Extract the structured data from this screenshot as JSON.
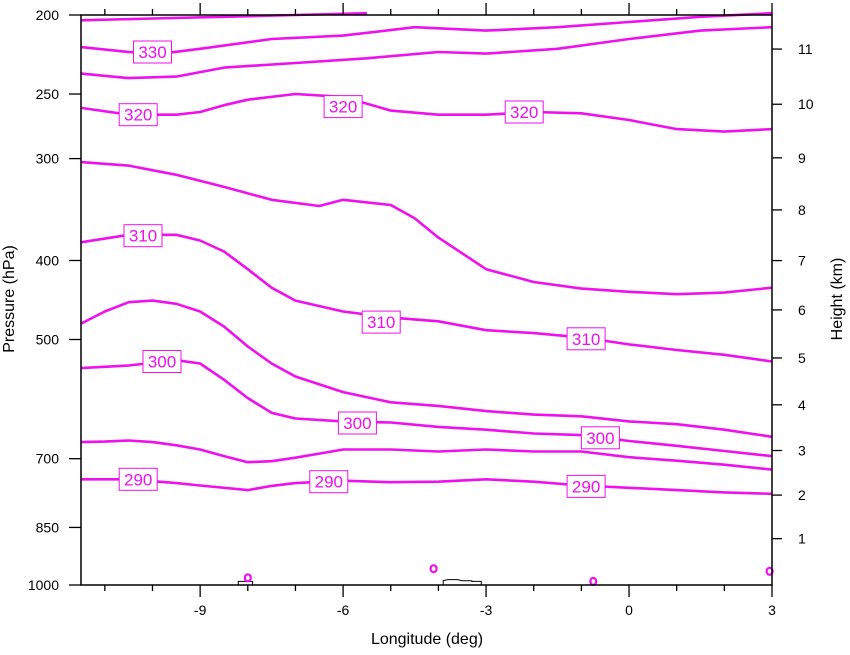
{
  "chart_data": {
    "type": "contour",
    "xlabel": "Longitude (deg)",
    "ylabel_left": "Pressure (hPa)",
    "ylabel_right": "Height (km)",
    "xlim": [
      -11.5,
      3
    ],
    "x_ticks": [
      -9,
      -6,
      -3,
      0,
      3
    ],
    "x_tick_labels": [
      "-9",
      "-6",
      "-3",
      "0",
      "3"
    ],
    "pressure_ticks": [
      200,
      250,
      300,
      400,
      500,
      700,
      850,
      1000
    ],
    "pressure_tick_labels": [
      "200",
      "250",
      "300",
      "400",
      "500",
      "700",
      "850",
      "1000"
    ],
    "ylim_pressure_hPa": [
      1000,
      200
    ],
    "height_ticks_km": [
      1,
      2,
      3,
      4,
      5,
      6,
      7,
      8,
      9,
      10,
      11
    ],
    "height_tick_labels": [
      "1",
      "2",
      "3",
      "4",
      "5",
      "6",
      "7",
      "8",
      "9",
      "10",
      "11"
    ],
    "contour_color": "#ee11ee",
    "terrain_color": "#000000",
    "contour_interval": 5,
    "contours": [
      {
        "value": 330,
        "label": "330",
        "points": [
          [
            -11.5,
            203
          ],
          [
            -10,
            202
          ],
          [
            -8.5,
            201
          ],
          [
            -7,
            200
          ],
          [
            -5.5,
            199
          ]
        ]
      },
      {
        "value": 330,
        "label": "330",
        "points": [
          [
            -11.5,
            219
          ],
          [
            -10.5,
            222
          ],
          [
            -9.8,
            223
          ],
          [
            -9,
            220
          ],
          [
            -7.5,
            214
          ],
          [
            -6,
            212
          ],
          [
            -4.5,
            207
          ],
          [
            -3,
            209
          ],
          [
            -1.5,
            207
          ],
          [
            0,
            204
          ],
          [
            1.5,
            201
          ],
          [
            3,
            199
          ]
        ]
      },
      {
        "value": 325,
        "label": "",
        "points": [
          [
            -11.5,
            236
          ],
          [
            -10.5,
            239
          ],
          [
            -9.5,
            238
          ],
          [
            -8.5,
            232
          ],
          [
            -7,
            229
          ],
          [
            -5.5,
            226
          ],
          [
            -4,
            222
          ],
          [
            -3,
            223
          ],
          [
            -1.5,
            220
          ],
          [
            0,
            214
          ],
          [
            1.5,
            209
          ],
          [
            3,
            207
          ]
        ]
      },
      {
        "value": 320,
        "label": "320",
        "points": [
          [
            -11.5,
            260
          ],
          [
            -10.5,
            265
          ],
          [
            -9.5,
            265
          ],
          [
            -9,
            263
          ],
          [
            -8.5,
            258
          ],
          [
            -8,
            254
          ],
          [
            -7,
            250
          ],
          [
            -6,
            252
          ],
          [
            -5,
            262
          ],
          [
            -4,
            265
          ],
          [
            -3,
            265
          ],
          [
            -2,
            263
          ],
          [
            -1,
            264
          ],
          [
            0,
            269
          ],
          [
            1,
            276
          ],
          [
            2,
            278
          ],
          [
            3,
            276
          ]
        ]
      },
      {
        "value": 315,
        "label": "",
        "points": [
          [
            -11.5,
            303
          ],
          [
            -10.5,
            306
          ],
          [
            -9.5,
            314
          ],
          [
            -8.5,
            325
          ],
          [
            -7.5,
            337
          ],
          [
            -6.5,
            343
          ],
          [
            -6,
            337
          ],
          [
            -5,
            342
          ],
          [
            -4.5,
            355
          ],
          [
            -4,
            375
          ],
          [
            -3,
            410
          ],
          [
            -2,
            425
          ],
          [
            -1,
            433
          ],
          [
            0,
            437
          ],
          [
            1,
            440
          ],
          [
            2,
            438
          ],
          [
            3,
            432
          ]
        ]
      },
      {
        "value": 310,
        "label": "310",
        "points": [
          [
            -11.5,
            380
          ],
          [
            -10.5,
            372
          ],
          [
            -9.5,
            372
          ],
          [
            -9,
            378
          ],
          [
            -8.5,
            390
          ],
          [
            -8,
            410
          ],
          [
            -7.5,
            432
          ],
          [
            -7,
            448
          ],
          [
            -6,
            462
          ],
          [
            -5,
            470
          ],
          [
            -4,
            475
          ],
          [
            -3,
            487
          ],
          [
            -2,
            491
          ],
          [
            -1,
            497
          ],
          [
            0,
            507
          ],
          [
            1,
            515
          ],
          [
            2,
            522
          ],
          [
            3,
            532
          ]
        ]
      },
      {
        "value": 305,
        "label": "",
        "points": [
          [
            -11.5,
            478
          ],
          [
            -11,
            462
          ],
          [
            -10.5,
            450
          ],
          [
            -10,
            448
          ],
          [
            -9.5,
            452
          ],
          [
            -9,
            462
          ],
          [
            -8.5,
            482
          ],
          [
            -8,
            510
          ],
          [
            -7.5,
            535
          ],
          [
            -7,
            555
          ],
          [
            -6,
            580
          ],
          [
            -5,
            597
          ],
          [
            -4,
            603
          ],
          [
            -3,
            612
          ],
          [
            -2,
            618
          ],
          [
            -1,
            621
          ],
          [
            0,
            630
          ],
          [
            1,
            635
          ],
          [
            2,
            645
          ],
          [
            3,
            658
          ]
        ]
      },
      {
        "value": 300,
        "label": "300",
        "points": [
          [
            -11.5,
            542
          ],
          [
            -10.5,
            538
          ],
          [
            -9.5,
            530
          ],
          [
            -9,
            535
          ],
          [
            -8.5,
            560
          ],
          [
            -8,
            590
          ],
          [
            -7.5,
            615
          ],
          [
            -7,
            625
          ],
          [
            -6,
            630
          ],
          [
            -5,
            632
          ],
          [
            -4,
            640
          ],
          [
            -3,
            645
          ],
          [
            -2,
            652
          ],
          [
            -1,
            655
          ],
          [
            0,
            666
          ],
          [
            1,
            675
          ],
          [
            2,
            685
          ],
          [
            3,
            695
          ]
        ]
      },
      {
        "value": 295,
        "label": "",
        "points": [
          [
            -11.5,
            668
          ],
          [
            -11,
            667
          ],
          [
            -10.5,
            665
          ],
          [
            -10,
            668
          ],
          [
            -9.5,
            674
          ],
          [
            -9,
            682
          ],
          [
            -8.5,
            695
          ],
          [
            -8,
            707
          ],
          [
            -7.5,
            705
          ],
          [
            -7,
            698
          ],
          [
            -6.5,
            690
          ],
          [
            -6,
            682
          ],
          [
            -5,
            682
          ],
          [
            -4,
            686
          ],
          [
            -3,
            682
          ],
          [
            -2,
            686
          ],
          [
            -1,
            686
          ],
          [
            0,
            697
          ],
          [
            1,
            704
          ],
          [
            2,
            712
          ],
          [
            3,
            722
          ]
        ]
      },
      {
        "value": 290,
        "label": "290",
        "points": [
          [
            -11.5,
            742
          ],
          [
            -10.5,
            742
          ],
          [
            -9.5,
            750
          ],
          [
            -9,
            755
          ],
          [
            -8,
            765
          ],
          [
            -7.5,
            756
          ],
          [
            -7,
            750
          ],
          [
            -6,
            745
          ],
          [
            -5,
            748
          ],
          [
            -4,
            747
          ],
          [
            -3,
            742
          ],
          [
            -2,
            747
          ],
          [
            -1,
            755
          ],
          [
            0,
            760
          ],
          [
            1,
            765
          ],
          [
            2,
            770
          ],
          [
            3,
            773
          ]
        ]
      }
    ],
    "contour_labels": [
      {
        "text": "330",
        "x": -10.0,
        "p": 222
      },
      {
        "text": "320",
        "x": -10.3,
        "p": 265
      },
      {
        "text": "320",
        "x": -6.0,
        "p": 259
      },
      {
        "text": "320",
        "x": -2.2,
        "p": 263
      },
      {
        "text": "310",
        "x": -10.2,
        "p": 373
      },
      {
        "text": "310",
        "x": -5.2,
        "p": 476
      },
      {
        "text": "310",
        "x": -0.9,
        "p": 499
      },
      {
        "text": "300",
        "x": -9.8,
        "p": 532
      },
      {
        "text": "300",
        "x": -5.7,
        "p": 633
      },
      {
        "text": "300",
        "x": -0.6,
        "p": 660
      },
      {
        "text": "290",
        "x": -10.3,
        "p": 742
      },
      {
        "text": "290",
        "x": -6.3,
        "p": 747
      },
      {
        "text": "290",
        "x": -0.9,
        "p": 757
      }
    ],
    "terrain": [
      {
        "points": [
          [
            -8.2,
            1000
          ],
          [
            -8.2,
            990
          ],
          [
            -7.9,
            990
          ],
          [
            -7.9,
            1000
          ]
        ]
      },
      {
        "points": [
          [
            -3.9,
            1000
          ],
          [
            -3.9,
            988
          ],
          [
            -3.8,
            985
          ],
          [
            -3.6,
            985
          ],
          [
            -3.5,
            988
          ],
          [
            -3.3,
            988
          ],
          [
            -3.3,
            990
          ],
          [
            -3.1,
            990
          ],
          [
            -3.1,
            1000
          ]
        ]
      }
    ]
  }
}
